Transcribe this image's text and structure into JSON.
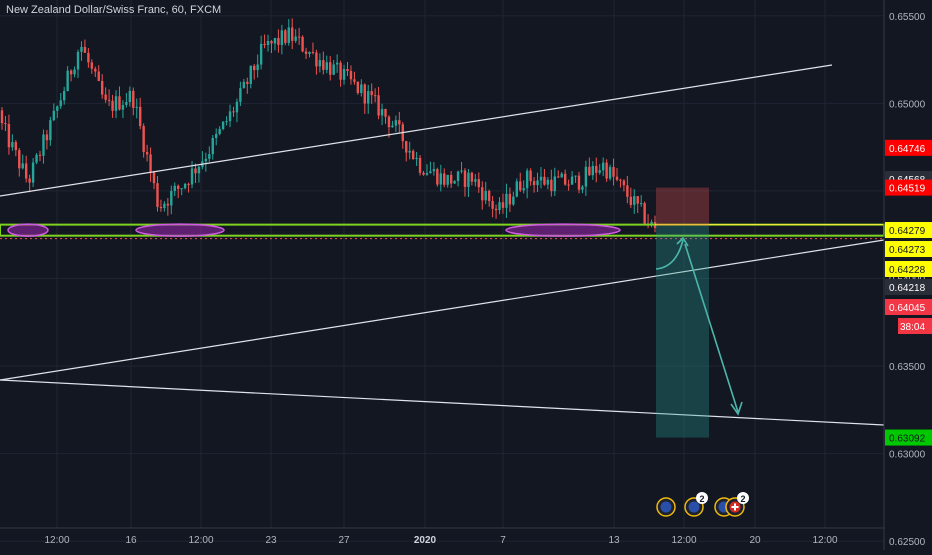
{
  "header": {
    "title": "New Zealand Dollar/Swiss Franc, 60, FXCM"
  },
  "chart_data": {
    "type": "candlestick",
    "title": "New Zealand Dollar/Swiss Franc, 60, FXCM",
    "xlabel": "",
    "ylabel": "",
    "ylim": [
      0.6245,
      0.6559
    ],
    "y_ticks": [
      0.655,
      0.65,
      0.645,
      0.64,
      0.635,
      0.63,
      0.625
    ],
    "y_tick_labels": [
      "0.65500",
      "0.65000",
      "0.64500",
      "0.64000",
      "0.63500",
      "0.63000",
      "0.62500"
    ],
    "x_tick_labels": [
      "12:00",
      "16",
      "12:00",
      "23",
      "27",
      "2020",
      "7",
      "13",
      "12:00",
      "20",
      "12:00"
    ],
    "price_path": [
      [
        0.6496,
        0.6478
      ],
      [
        0.647,
        0.644
      ],
      [
        0.647,
        0.6515
      ],
      [
        0.6528,
        0.654
      ],
      [
        0.6505,
        0.649
      ],
      [
        0.6508,
        0.6501
      ],
      [
        0.6452,
        0.643
      ],
      [
        0.6435,
        0.6475
      ],
      [
        0.647,
        0.648
      ],
      [
        0.6495,
        0.6505
      ],
      [
        0.6525,
        0.6537
      ],
      [
        0.655,
        0.6528
      ],
      [
        0.6538,
        0.6515
      ],
      [
        0.6522,
        0.651
      ],
      [
        0.6515,
        0.6493
      ],
      [
        0.649,
        0.6485
      ],
      [
        0.646,
        0.647
      ],
      [
        0.6458,
        0.6454
      ],
      [
        0.647,
        0.6445
      ],
      [
        0.6445,
        0.643
      ],
      [
        0.644,
        0.6475
      ],
      [
        0.646,
        0.645
      ],
      [
        0.6445,
        0.6465
      ],
      [
        0.647,
        0.646
      ],
      [
        0.6455,
        0.6438
      ],
      [
        0.6432,
        0.6423
      ]
    ],
    "support_zone": {
      "from": 0.64273,
      "to": 0.64279,
      "color": "#7ed321"
    },
    "price_labels": [
      {
        "value": 0.64746,
        "label": "0.64746",
        "bg": "#ff0000",
        "fg": "#ffffff"
      },
      {
        "value": 0.64568,
        "label": "0.64568",
        "bg": "#2a2e39",
        "fg": "#ffffff"
      },
      {
        "value": 0.64519,
        "label": "0.64519",
        "bg": "#ff0000",
        "fg": "#ffffff"
      },
      {
        "value": 0.64279,
        "label": "0.64279",
        "bg": "#ffff00",
        "fg": "#131722"
      },
      {
        "value": 0.64273,
        "label": "0.64273",
        "bg": "#ffff00",
        "fg": "#131722"
      },
      {
        "value": 0.64228,
        "label": "0.64228",
        "bg": "#ffff00",
        "fg": "#131722"
      },
      {
        "value": 0.64218,
        "label": "0.64218",
        "bg": "#2a2e39",
        "fg": "#ffffff"
      },
      {
        "value": 0.64045,
        "label": "0.64045",
        "bg": "#f23645",
        "fg": "#ffffff"
      },
      {
        "value": 0.63092,
        "label": "0.63092",
        "bg": "#00c800",
        "fg": "#131722"
      }
    ],
    "countdown": {
      "label": "38:04",
      "bg": "#f23645"
    },
    "position": {
      "entry": 0.64273,
      "stop": 0.64519,
      "target": 0.63092
    },
    "events": [
      {
        "icon": "nzd-flag-icon",
        "count": ""
      },
      {
        "icon": "nzd-flag-icon",
        "count": "2"
      },
      {
        "icon": "nzd-flag-icon",
        "count": ""
      },
      {
        "icon": "chf-flag-icon",
        "count": "2"
      }
    ],
    "colors": {
      "background": "#131722",
      "grid": "#1f2433",
      "candle_up": "#26a69a",
      "candle_down": "#ef5350",
      "trendline": "#e0e3eb",
      "projection_arrow": "#4db6ac",
      "marker_ellipse": "#9c27b0"
    }
  }
}
